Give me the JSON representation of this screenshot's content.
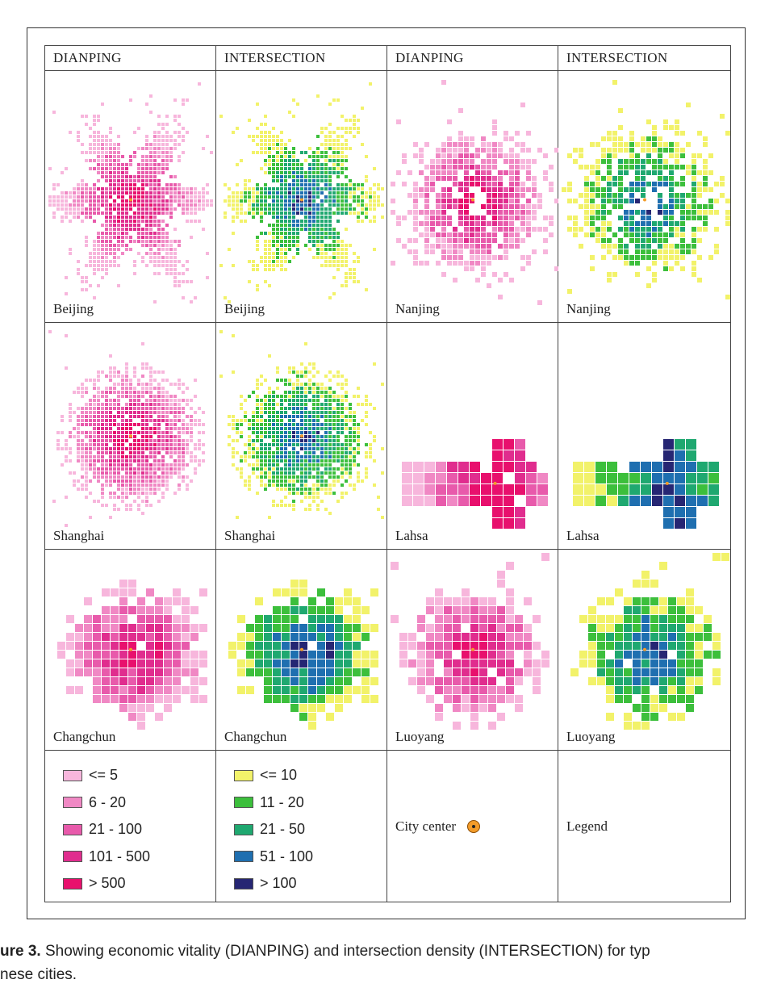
{
  "headers": [
    "DIANPING",
    "INTERSECTION",
    "DIANPING",
    "INTERSECTION"
  ],
  "rows": [
    [
      "Beijing",
      "Beijing",
      "Nanjing",
      "Nanjing"
    ],
    [
      "Shanghai",
      "Shanghai",
      "Lahsa",
      "Lahsa"
    ],
    [
      "Changchun",
      "Changchun",
      "Luoyang",
      "Luoyang"
    ]
  ],
  "legend_dianping": [
    {
      "label": "<= 5",
      "color": "#f7b6dc"
    },
    {
      "label": "6 - 20",
      "color": "#f088c4"
    },
    {
      "label": "21 - 100",
      "color": "#e85aab"
    },
    {
      "label": "101 - 500",
      "color": "#e02d8e"
    },
    {
      "label": "> 500",
      "color": "#e8106d"
    }
  ],
  "legend_intersection": [
    {
      "label": "<= 10",
      "color": "#f2f26a"
    },
    {
      "label": "11 - 20",
      "color": "#3cbf3c"
    },
    {
      "label": "21 - 50",
      "color": "#1fa870"
    },
    {
      "label": "51 - 100",
      "color": "#1f6fb0"
    },
    {
      "label": "> 100",
      "color": "#262673"
    }
  ],
  "city_center_label": "City center",
  "legend_label": "Legend",
  "caption": {
    "prefix": "ure 3.",
    "line1": " Showing economic vitality (DIANPING) and intersection density (INTERSECTION) for typ",
    "line2": "nese cities."
  }
}
